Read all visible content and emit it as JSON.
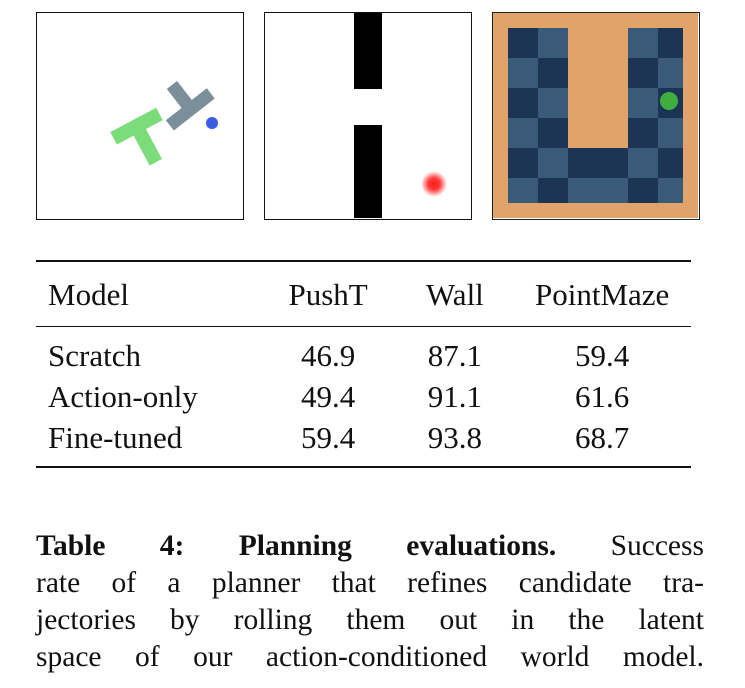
{
  "figure": {
    "panels": [
      {
        "name": "PushT",
        "icon": "pusht-env-icon"
      },
      {
        "name": "Wall",
        "icon": "wall-env-icon"
      },
      {
        "name": "PointMaze",
        "icon": "pointmaze-env-icon"
      }
    ],
    "colors": {
      "pusht_t": "#7ddc7a",
      "pusht_agent_t": "#7b8f9a",
      "pusht_agent_dot": "#3b5be0",
      "wall": "#000000",
      "wall_target": "#ff2222",
      "maze_bg": "#e0a36a",
      "maze_dark": "#1c3554",
      "maze_light": "#3b5979",
      "maze_ball": "#3fae3f"
    }
  },
  "table": {
    "headers": [
      "Model",
      "PushT",
      "Wall",
      "PointMaze"
    ],
    "rows": [
      {
        "model": "Scratch",
        "pusht": "46.9",
        "wall": "87.1",
        "pointmaze": "59.4"
      },
      {
        "model": "Action-only",
        "pusht": "49.4",
        "wall": "91.1",
        "pointmaze": "61.6"
      },
      {
        "model": "Fine-tuned",
        "pusht": "59.4",
        "wall": "93.8",
        "pointmaze": "68.7"
      }
    ]
  },
  "caption": {
    "label": "Table 4:",
    "title": "Planning evaluations.",
    "line1_rest": "Success",
    "line2": "rate of a planner that refines candidate tra-",
    "line3": "jectories by rolling them out in the latent",
    "line4": "space of our action-conditioned world model."
  }
}
